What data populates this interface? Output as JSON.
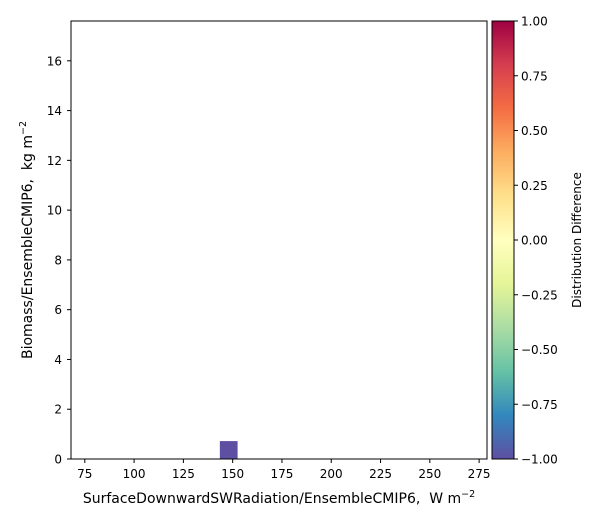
{
  "chart_data": {
    "type": "heatmap",
    "title": "",
    "xlabel": "SurfaceDownwardSWRadiation/EnsembleCMIP6,",
    "xlabel_unit": "W m",
    "xlabel_unit_exp": "−2",
    "ylabel": "Biomass/EnsembleCMIP6,",
    "ylabel_unit": "kg m",
    "ylabel_unit_exp": "−2",
    "xlim": [
      68,
      279
    ],
    "ylim": [
      0,
      17.6
    ],
    "xticks": [
      75,
      100,
      125,
      150,
      175,
      200,
      225,
      250,
      275
    ],
    "yticks": [
      0,
      2,
      4,
      6,
      8,
      10,
      12,
      14,
      16
    ],
    "cells": [
      {
        "x0": 143.5,
        "x1": 152.5,
        "y0": 0,
        "y1": 0.72,
        "value": -1.0
      }
    ],
    "colorbar": {
      "label": "Distribution Difference",
      "range": [
        -1.0,
        1.0
      ],
      "ticks": [
        -1.0,
        -0.75,
        -0.5,
        -0.25,
        0.0,
        0.25,
        0.5,
        0.75,
        1.0
      ],
      "tick_labels": [
        "−1.00",
        "−0.75",
        "−0.50",
        "−0.25",
        "0.00",
        "0.25",
        "0.50",
        "0.75",
        "1.00"
      ],
      "colormap": "Spectral_r",
      "stops": [
        "#5e4fa2",
        "#3288bd",
        "#66c2a5",
        "#abdda4",
        "#e6f598",
        "#ffffbf",
        "#fee08b",
        "#fdae61",
        "#f46d43",
        "#d53e4f",
        "#9e0142"
      ]
    }
  }
}
